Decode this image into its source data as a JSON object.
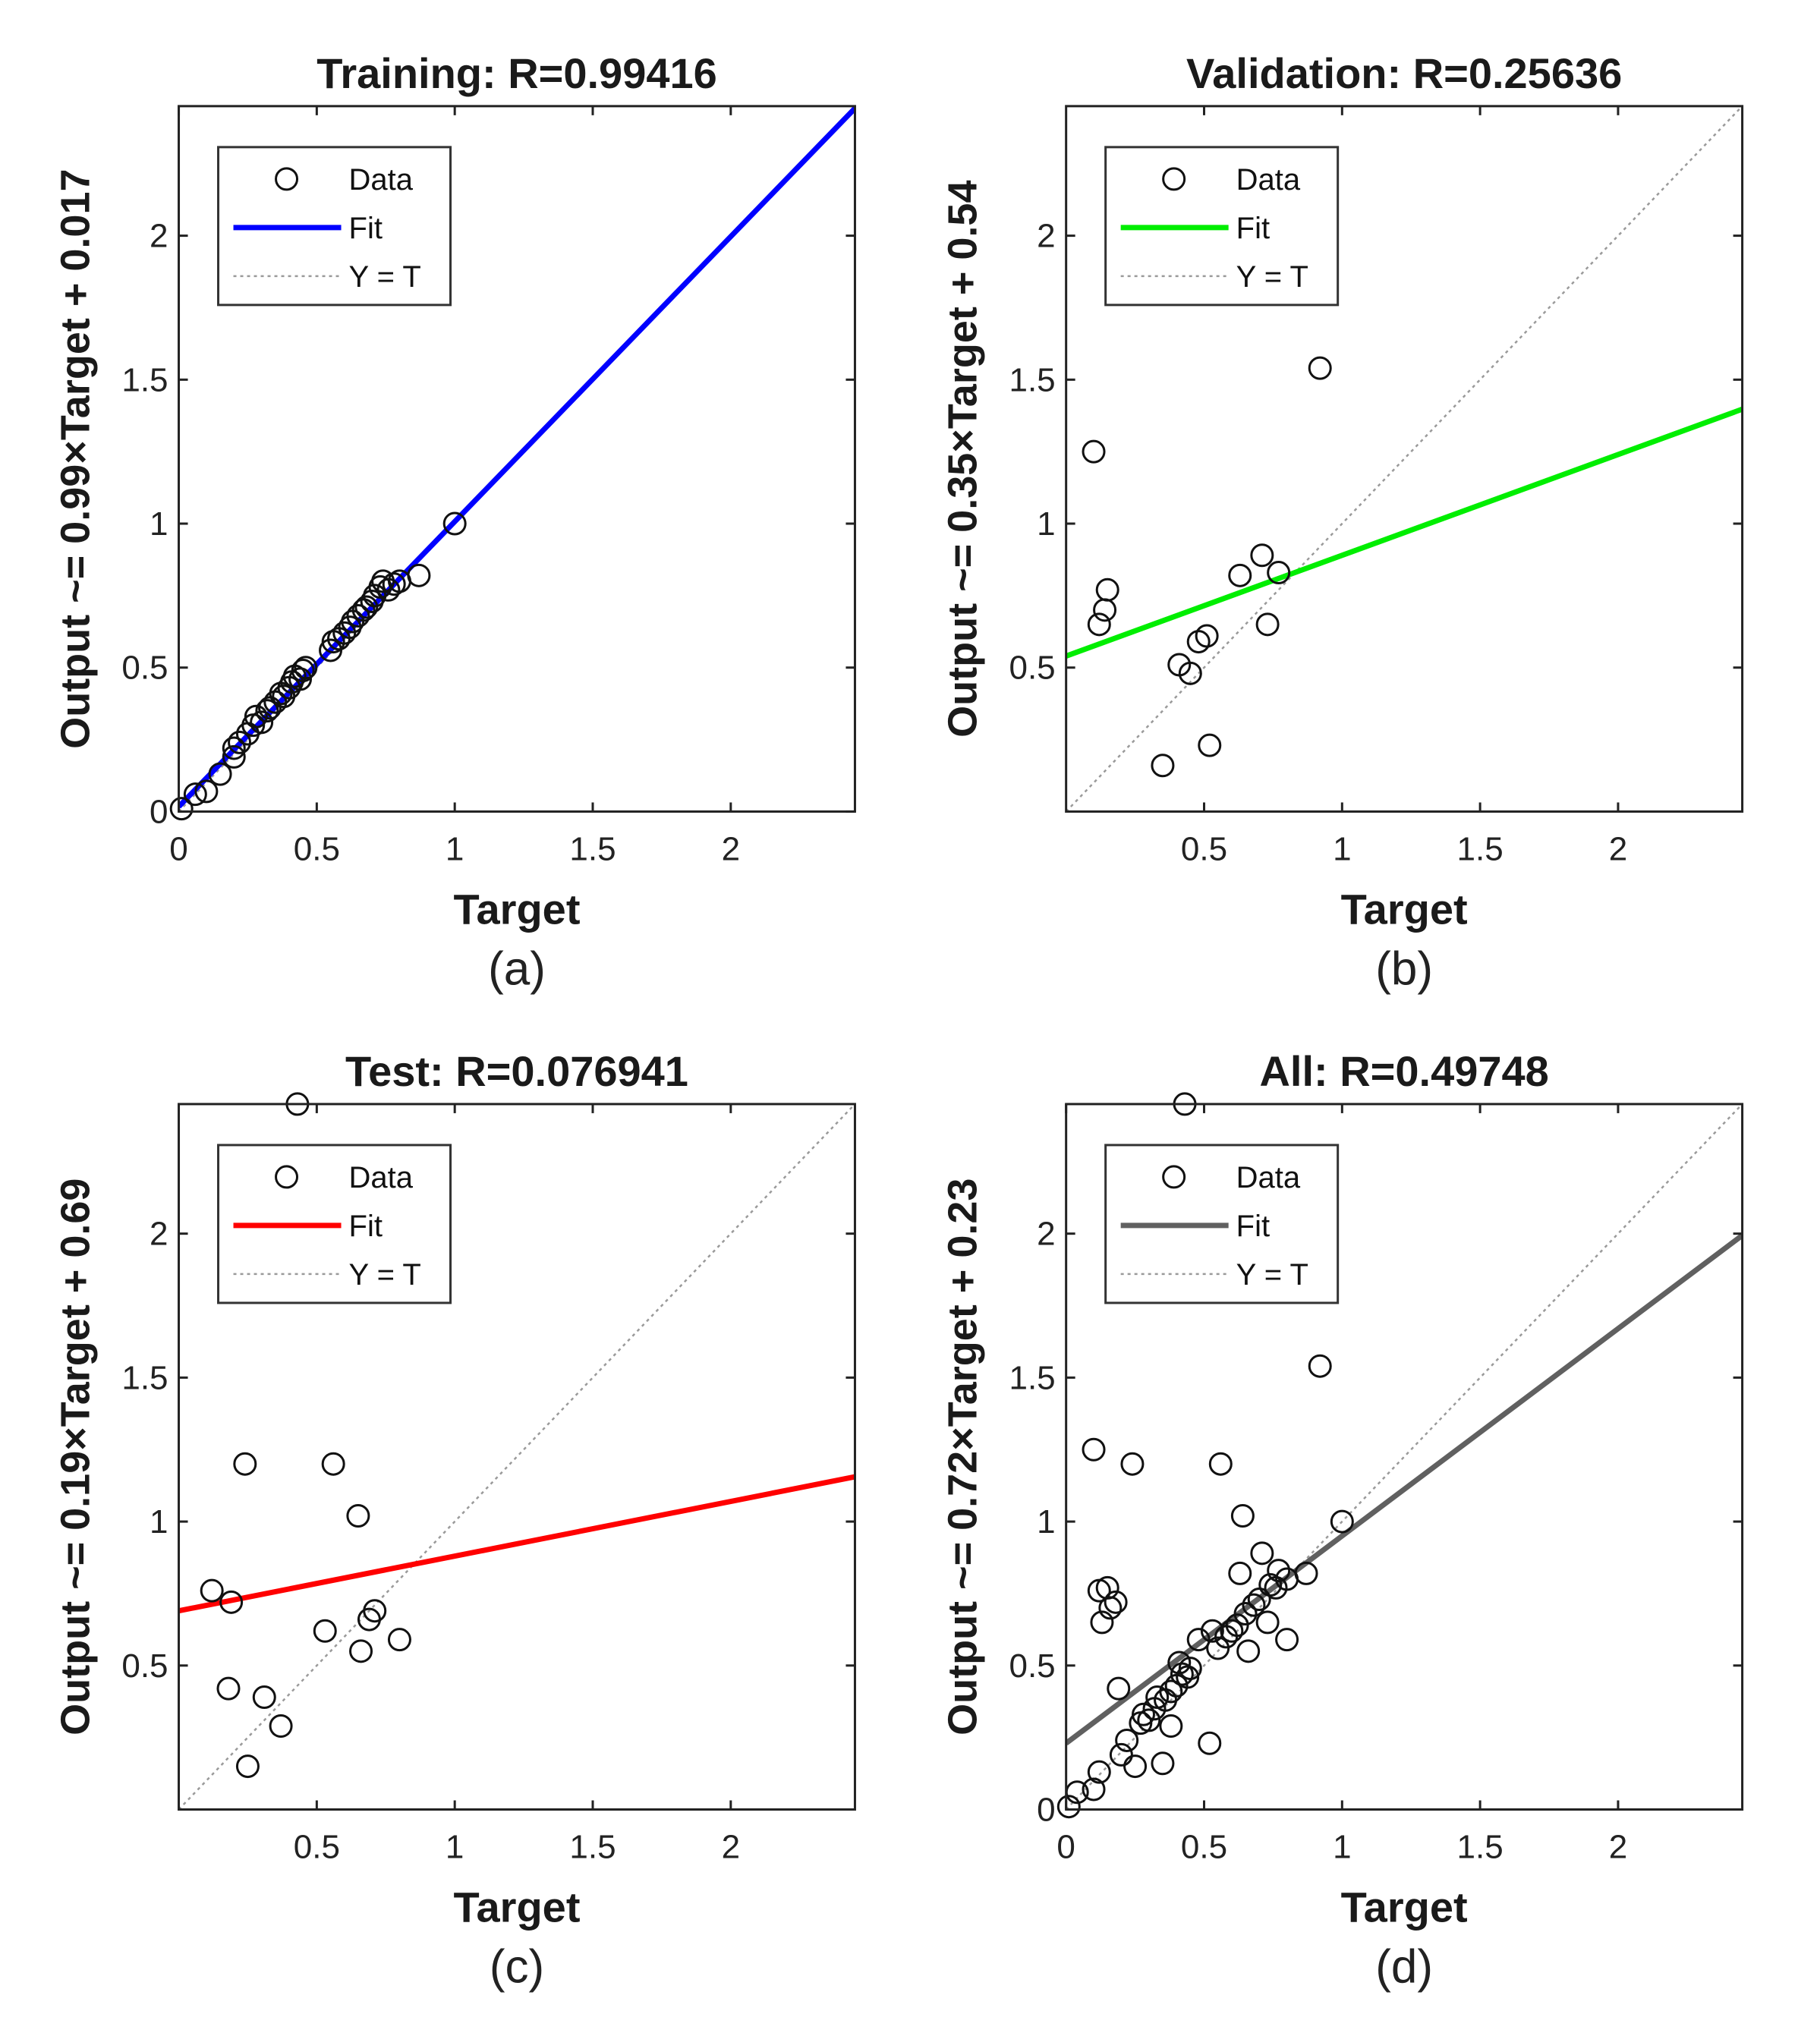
{
  "chart_data": [
    {
      "type": "scatter",
      "title": "Training: R=0.99416",
      "xlabel": "Target",
      "ylabel": "Output ~= 0.99×Target + 0.017",
      "caption": "(a)",
      "xlim": [
        0,
        2.45
      ],
      "ylim": [
        0,
        2.45
      ],
      "xticks": [
        0,
        0.5,
        1,
        1.5,
        2
      ],
      "xtick_labels": [
        "0",
        "0.5",
        "1",
        "1.5",
        "2"
      ],
      "yticks": [
        0,
        0.5,
        1,
        1.5,
        2
      ],
      "ytick_labels": [
        "0",
        "0.5",
        "1",
        "1.5",
        "2"
      ],
      "fit": {
        "slope": 0.99,
        "intercept": 0.017,
        "color": "#0000ff"
      },
      "legend": {
        "placement": "top-left",
        "entries": [
          "Data",
          "Fit",
          "Y = T"
        ]
      },
      "points": [
        [
          0.01,
          0.01
        ],
        [
          0.06,
          0.06
        ],
        [
          0.1,
          0.07
        ],
        [
          0.15,
          0.13
        ],
        [
          0.2,
          0.19
        ],
        [
          0.2,
          0.22
        ],
        [
          0.22,
          0.24
        ],
        [
          0.25,
          0.27
        ],
        [
          0.27,
          0.3
        ],
        [
          0.28,
          0.33
        ],
        [
          0.3,
          0.31
        ],
        [
          0.32,
          0.35
        ],
        [
          0.33,
          0.36
        ],
        [
          0.35,
          0.38
        ],
        [
          0.37,
          0.41
        ],
        [
          0.38,
          0.4
        ],
        [
          0.4,
          0.43
        ],
        [
          0.41,
          0.45
        ],
        [
          0.42,
          0.47
        ],
        [
          0.44,
          0.46
        ],
        [
          0.45,
          0.49
        ],
        [
          0.46,
          0.5
        ],
        [
          0.55,
          0.56
        ],
        [
          0.56,
          0.59
        ],
        [
          0.58,
          0.6
        ],
        [
          0.6,
          0.62
        ],
        [
          0.62,
          0.64
        ],
        [
          0.63,
          0.66
        ],
        [
          0.65,
          0.68
        ],
        [
          0.67,
          0.7
        ],
        [
          0.68,
          0.71
        ],
        [
          0.7,
          0.73
        ],
        [
          0.71,
          0.75
        ],
        [
          0.73,
          0.78
        ],
        [
          0.74,
          0.8
        ],
        [
          0.76,
          0.77
        ],
        [
          0.78,
          0.79
        ],
        [
          0.8,
          0.8
        ],
        [
          0.87,
          0.82
        ],
        [
          1.0,
          1.0
        ]
      ]
    },
    {
      "type": "scatter",
      "title": "Validation: R=0.25636",
      "xlabel": "Target",
      "ylabel": "Output ~= 0.35×Target + 0.54",
      "caption": "(b)",
      "xlim": [
        0,
        2.45
      ],
      "ylim": [
        0,
        2.45
      ],
      "xticks": [
        0.5,
        1,
        1.5,
        2
      ],
      "xtick_labels": [
        "0.5",
        "1",
        "1.5",
        "2"
      ],
      "yticks": [
        0.5,
        1,
        1.5,
        2
      ],
      "ytick_labels": [
        "0.5",
        "1",
        "1.5",
        "2"
      ],
      "fit": {
        "slope": 0.35,
        "intercept": 0.54,
        "color": "#00ee00"
      },
      "legend": {
        "placement": "top-left",
        "entries": [
          "Data",
          "Fit",
          "Y = T"
        ]
      },
      "points": [
        [
          0.1,
          1.25
        ],
        [
          0.12,
          0.65
        ],
        [
          0.14,
          0.7
        ],
        [
          0.15,
          0.77
        ],
        [
          0.35,
          0.16
        ],
        [
          0.41,
          0.51
        ],
        [
          0.45,
          0.48
        ],
        [
          0.48,
          0.59
        ],
        [
          0.51,
          0.61
        ],
        [
          0.52,
          0.23
        ],
        [
          0.63,
          0.82
        ],
        [
          0.71,
          0.89
        ],
        [
          0.73,
          0.65
        ],
        [
          0.77,
          0.83
        ],
        [
          0.92,
          1.54
        ]
      ]
    },
    {
      "type": "scatter",
      "title": "Test: R=0.076941",
      "xlabel": "Target",
      "ylabel": "Output ~= 0.19×Target + 0.69",
      "caption": "(c)",
      "xlim": [
        0,
        2.45
      ],
      "ylim": [
        0,
        2.45
      ],
      "xticks": [
        0.5,
        1,
        1.5,
        2
      ],
      "xtick_labels": [
        "0.5",
        "1",
        "1.5",
        "2"
      ],
      "yticks": [
        0.5,
        1,
        1.5,
        2
      ],
      "ytick_labels": [
        "0.5",
        "1",
        "1.5",
        "2"
      ],
      "fit": {
        "slope": 0.19,
        "intercept": 0.69,
        "color": "#ff0000"
      },
      "legend": {
        "placement": "top-left",
        "entries": [
          "Data",
          "Fit",
          "Y = T"
        ]
      },
      "points": [
        [
          0.12,
          0.76
        ],
        [
          0.18,
          0.42
        ],
        [
          0.19,
          0.72
        ],
        [
          0.24,
          1.2
        ],
        [
          0.25,
          0.15
        ],
        [
          0.31,
          0.39
        ],
        [
          0.37,
          0.29
        ],
        [
          0.43,
          2.45
        ],
        [
          0.53,
          0.62
        ],
        [
          0.56,
          1.2
        ],
        [
          0.65,
          1.02
        ],
        [
          0.66,
          0.55
        ],
        [
          0.69,
          0.66
        ],
        [
          0.71,
          0.69
        ],
        [
          0.8,
          0.59
        ]
      ]
    },
    {
      "type": "scatter",
      "title": "All: R=0.49748",
      "xlabel": "Target",
      "ylabel": "Output ~= 0.72×Target + 0.23",
      "caption": "(d)",
      "xlim": [
        0,
        2.45
      ],
      "ylim": [
        0,
        2.45
      ],
      "xticks": [
        0,
        0.5,
        1,
        1.5,
        2
      ],
      "xtick_labels": [
        "0",
        "0.5",
        "1",
        "1.5",
        "2"
      ],
      "yticks": [
        0,
        0.5,
        1,
        1.5,
        2
      ],
      "ytick_labels": [
        "0",
        "0.5",
        "1",
        "1.5",
        "2"
      ],
      "fit": {
        "slope": 0.72,
        "intercept": 0.23,
        "color": "#606060"
      },
      "legend": {
        "placement": "top-left",
        "entries": [
          "Data",
          "Fit",
          "Y = T"
        ]
      },
      "points": [
        [
          0.01,
          0.01
        ],
        [
          0.04,
          0.06
        ],
        [
          0.1,
          0.07
        ],
        [
          0.12,
          0.13
        ],
        [
          0.1,
          1.25
        ],
        [
          0.12,
          0.76
        ],
        [
          0.13,
          0.65
        ],
        [
          0.15,
          0.77
        ],
        [
          0.16,
          0.7
        ],
        [
          0.18,
          0.72
        ],
        [
          0.19,
          0.42
        ],
        [
          0.2,
          0.19
        ],
        [
          0.22,
          0.24
        ],
        [
          0.24,
          1.2
        ],
        [
          0.25,
          0.15
        ],
        [
          0.27,
          0.3
        ],
        [
          0.28,
          0.33
        ],
        [
          0.3,
          0.31
        ],
        [
          0.32,
          0.35
        ],
        [
          0.33,
          0.39
        ],
        [
          0.35,
          0.16
        ],
        [
          0.36,
          0.38
        ],
        [
          0.38,
          0.29
        ],
        [
          0.38,
          0.41
        ],
        [
          0.4,
          0.43
        ],
        [
          0.41,
          0.51
        ],
        [
          0.42,
          0.47
        ],
        [
          0.43,
          2.45
        ],
        [
          0.44,
          0.46
        ],
        [
          0.45,
          0.49
        ],
        [
          0.48,
          0.59
        ],
        [
          0.52,
          0.23
        ],
        [
          0.53,
          0.62
        ],
        [
          0.55,
          0.56
        ],
        [
          0.56,
          1.2
        ],
        [
          0.58,
          0.6
        ],
        [
          0.6,
          0.62
        ],
        [
          0.62,
          0.64
        ],
        [
          0.63,
          0.82
        ],
        [
          0.64,
          1.02
        ],
        [
          0.65,
          0.68
        ],
        [
          0.66,
          0.55
        ],
        [
          0.68,
          0.71
        ],
        [
          0.7,
          0.73
        ],
        [
          0.71,
          0.89
        ],
        [
          0.73,
          0.65
        ],
        [
          0.74,
          0.78
        ],
        [
          0.76,
          0.77
        ],
        [
          0.77,
          0.83
        ],
        [
          0.8,
          0.59
        ],
        [
          0.8,
          0.8
        ],
        [
          0.87,
          0.82
        ],
        [
          0.92,
          1.54
        ],
        [
          1.0,
          1.0
        ]
      ]
    }
  ]
}
